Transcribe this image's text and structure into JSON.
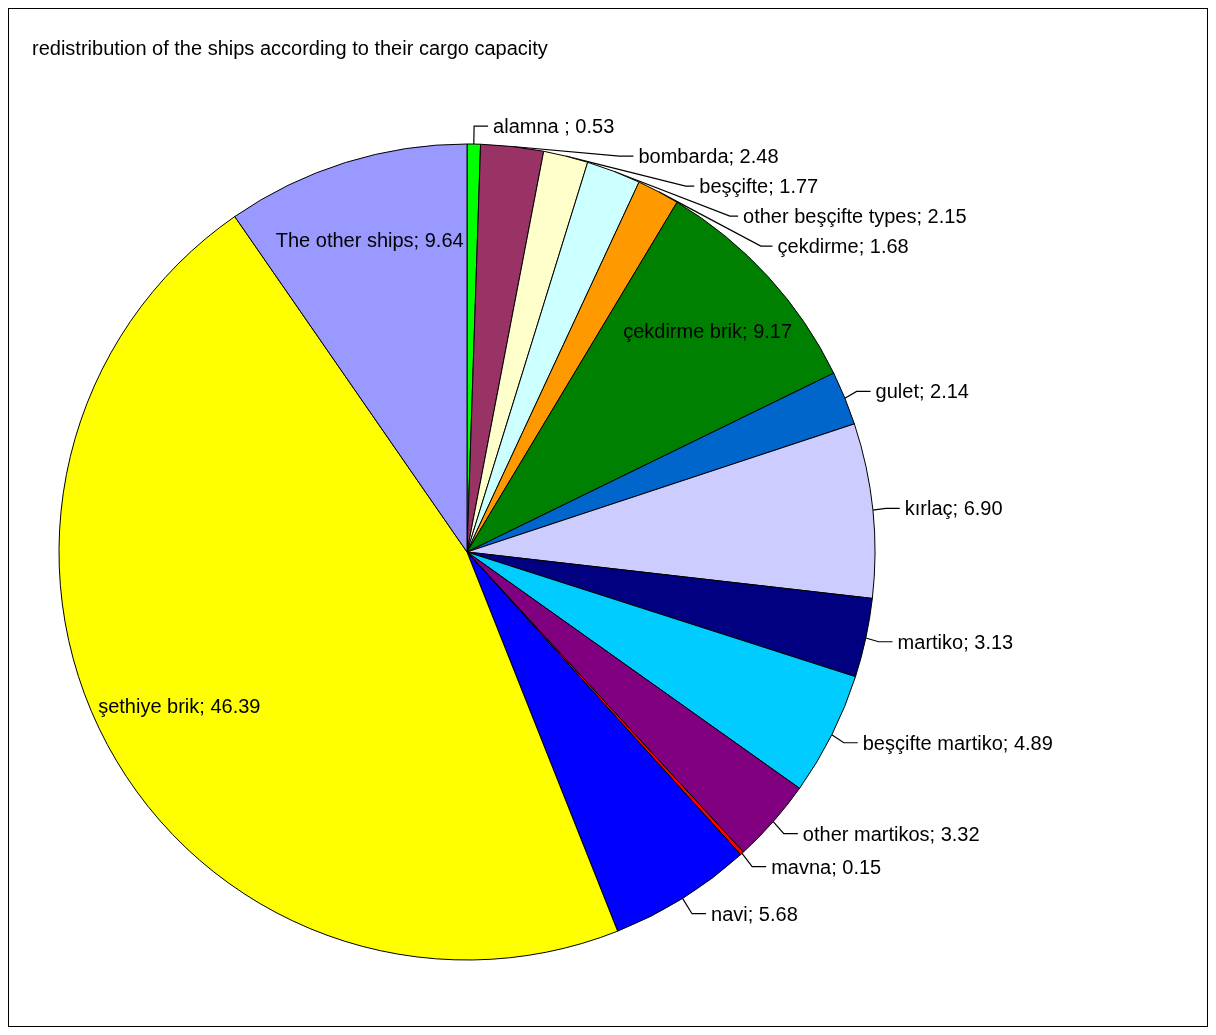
{
  "chart_data": {
    "type": "pie",
    "title": "redistribution of the ships according to their cargo capacity",
    "categories": [
      "alamna ",
      "bombarda",
      "beşçifte",
      "other beşçifte types",
      "çekdirme",
      "çekdirme brik",
      "gulet",
      "kırlaç",
      "martiko",
      "beşçifte martiko",
      "other martikos",
      "mavna",
      "navi",
      "şethiye brik",
      "The other ships"
    ],
    "values": [
      0.53,
      2.48,
      1.77,
      2.15,
      1.68,
      9.17,
      2.14,
      6.9,
      3.13,
      4.89,
      3.32,
      0.15,
      5.68,
      46.39,
      9.64
    ],
    "value_labels": [
      "0.53",
      "2.48",
      "1.77",
      "2.15",
      "1.68",
      "9.17",
      "2.14",
      "6.90",
      "3.13",
      "4.89",
      "3.32",
      "0.15",
      "5.68",
      "46.39",
      "9.64"
    ],
    "colors": [
      "#00ff00",
      "#993366",
      "#ffffcc",
      "#ccffff",
      "#ff9900",
      "#008000",
      "#0066cc",
      "#ccccff",
      "#000080",
      "#00ccff",
      "#800080",
      "#ff0000",
      "#0000ff",
      "#ffff00",
      "#9999ff"
    ],
    "legend": false
  }
}
